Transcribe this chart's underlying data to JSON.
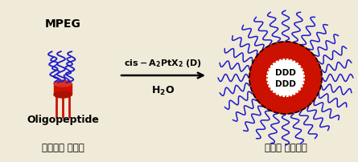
{
  "bg_color": "#f0ead8",
  "arrow_color": "black",
  "arrow_text1": "cis-$\\mathbf{A_2PtX_2}$ (D)",
  "arrow_text2": "$\\mathbf{H_2O}$",
  "label_left": "포스파젠 단위체",
  "label_right": "미셀형 백금착물",
  "mpeg_label": "MPEG",
  "oligo_label": "Oligopeptide",
  "ddd_text": "DDD\nDDD",
  "blue_color": "#1a1acd",
  "red_color": "#cc1100",
  "dark_red": "#990000"
}
